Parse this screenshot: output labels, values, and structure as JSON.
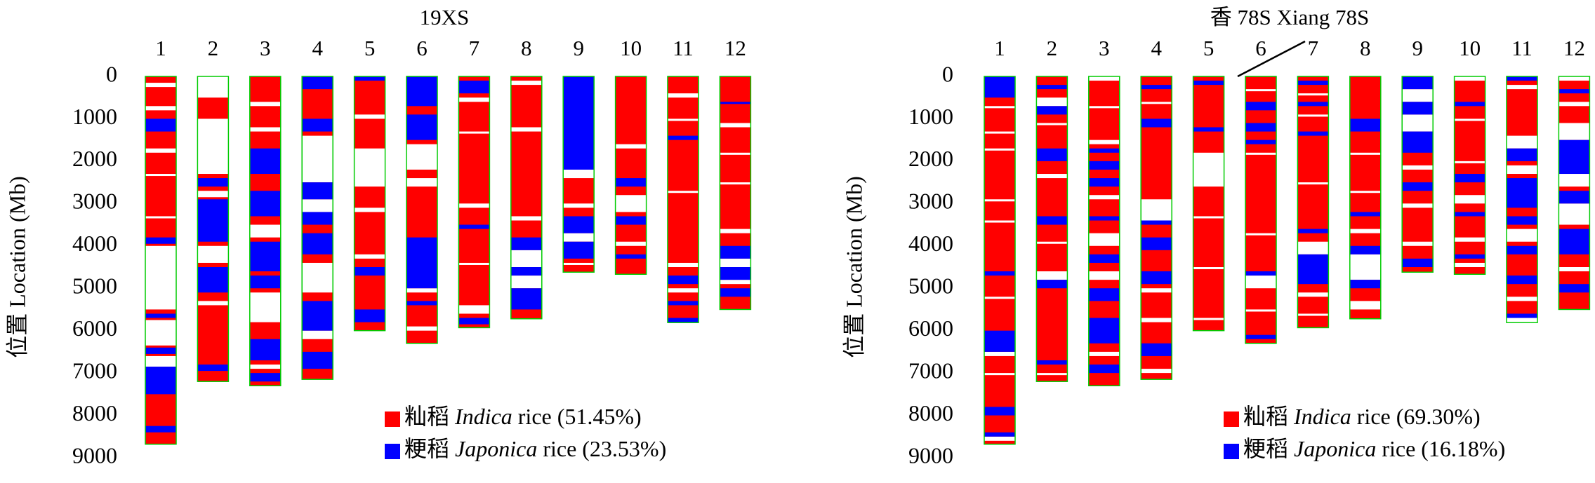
{
  "chart_data": [
    {
      "type": "chromosome_map",
      "title": "19XS",
      "y_label": "位置 Location (Mb)",
      "ylim": [
        0,
        9000
      ],
      "yticks": [
        0,
        1000,
        2000,
        3000,
        4000,
        5000,
        6000,
        7000,
        8000,
        9000
      ],
      "categories": [
        "1",
        "2",
        "3",
        "4",
        "5",
        "6",
        "7",
        "8",
        "9",
        "10",
        "11",
        "12"
      ],
      "lengths": [
        8680,
        7200,
        7300,
        7150,
        6000,
        6300,
        5930,
        5720,
        4620,
        4670,
        5810,
        5500
      ],
      "legend": [
        {
          "label_zh": "籼稻",
          "label_italic": "Indica",
          "label_rest": "rice (51.45%)",
          "color": "#ff0000"
        },
        {
          "label_zh": "粳稻",
          "label_italic": "Japonica",
          "label_rest": "rice (23.53%)",
          "color": "#0000ff"
        }
      ],
      "blue": [
        [
          [
            1000,
            1300
          ],
          [
            3800,
            3950
          ],
          [
            5600,
            5700
          ],
          [
            6400,
            6550
          ],
          [
            6850,
            7500
          ],
          [
            8250,
            8400
          ]
        ],
        [
          [
            2400,
            2600
          ],
          [
            2900,
            3900
          ],
          [
            4500,
            5100
          ],
          [
            6800,
            6950
          ]
        ],
        [
          [
            1700,
            2300
          ],
          [
            2700,
            3300
          ],
          [
            3900,
            4600
          ],
          [
            4700,
            5000
          ],
          [
            6200,
            6700
          ],
          [
            7000,
            7200
          ]
        ],
        [
          [
            0,
            300
          ],
          [
            1000,
            1300
          ],
          [
            2500,
            2900
          ],
          [
            3200,
            3500
          ],
          [
            3700,
            4200
          ],
          [
            5300,
            6000
          ],
          [
            6500,
            6900
          ]
        ],
        [
          [
            0,
            100
          ],
          [
            4500,
            4700
          ],
          [
            5500,
            5800
          ]
        ],
        [
          [
            0,
            700
          ],
          [
            900,
            1500
          ],
          [
            3800,
            5000
          ],
          [
            5300,
            5400
          ]
        ],
        [
          [
            100,
            400
          ],
          [
            3500,
            3600
          ],
          [
            5700,
            5850
          ]
        ],
        [
          [
            3800,
            4100
          ],
          [
            4500,
            4700
          ],
          [
            5000,
            5500
          ]
        ],
        [
          [
            0,
            2200
          ],
          [
            3300,
            3700
          ],
          [
            3900,
            4300
          ]
        ],
        [
          [
            2400,
            2600
          ],
          [
            3300,
            3500
          ],
          [
            4200,
            4300
          ]
        ],
        [
          [
            1400,
            1500
          ],
          [
            4700,
            4900
          ],
          [
            5300,
            5400
          ],
          [
            5700,
            5810
          ]
        ],
        [
          [
            600,
            650
          ],
          [
            4000,
            4300
          ],
          [
            4500,
            4800
          ],
          [
            5000,
            5200
          ]
        ]
      ],
      "white": [
        [
          [
            150,
            250
          ],
          [
            700,
            800
          ],
          [
            1700,
            1800
          ],
          [
            2300,
            2350
          ],
          [
            3300,
            3350
          ],
          [
            4000,
            5500
          ],
          [
            5750,
            6350
          ],
          [
            6600,
            6850
          ]
        ],
        [
          [
            0,
            500
          ],
          [
            1000,
            2300
          ],
          [
            2700,
            2850
          ],
          [
            4000,
            4400
          ],
          [
            5300,
            5400
          ]
        ],
        [
          [
            600,
            700
          ],
          [
            1200,
            1300
          ],
          [
            3500,
            3800
          ],
          [
            5100,
            5800
          ],
          [
            6800,
            6900
          ]
        ],
        [
          [
            1400,
            2500
          ],
          [
            2900,
            3200
          ],
          [
            4400,
            5100
          ],
          [
            6000,
            6200
          ]
        ],
        [
          [
            900,
            1000
          ],
          [
            1700,
            2600
          ],
          [
            3100,
            3200
          ],
          [
            4200,
            4300
          ]
        ],
        [
          [
            1600,
            2200
          ],
          [
            2400,
            2600
          ],
          [
            5000,
            5100
          ],
          [
            5900,
            6000
          ]
        ],
        [
          [
            500,
            600
          ],
          [
            1300,
            1350
          ],
          [
            3000,
            3100
          ],
          [
            4400,
            4450
          ],
          [
            5400,
            5600
          ]
        ],
        [
          [
            100,
            200
          ],
          [
            1200,
            1300
          ],
          [
            3300,
            3400
          ],
          [
            4100,
            4500
          ],
          [
            4700,
            5000
          ]
        ],
        [
          [
            2200,
            2400
          ],
          [
            3000,
            3100
          ],
          [
            3700,
            3900
          ],
          [
            4400,
            4450
          ]
        ],
        [
          [
            1600,
            1700
          ],
          [
            2800,
            3200
          ],
          [
            3900,
            4000
          ]
        ],
        [
          [
            400,
            500
          ],
          [
            1000,
            1050
          ],
          [
            2700,
            2750
          ],
          [
            4400,
            4500
          ],
          [
            5000,
            5100
          ]
        ],
        [
          [
            1100,
            1200
          ],
          [
            1800,
            1850
          ],
          [
            2500,
            2550
          ],
          [
            3600,
            3700
          ],
          [
            4300,
            4500
          ],
          [
            4800,
            4900
          ]
        ]
      ]
    },
    {
      "type": "chromosome_map",
      "title": "香 78S Xiang 78S",
      "y_label": "位置 Location (Mb)",
      "ylim": [
        0,
        9000
      ],
      "yticks": [
        0,
        1000,
        2000,
        3000,
        4000,
        5000,
        6000,
        7000,
        8000,
        9000
      ],
      "categories": [
        "1",
        "2",
        "3",
        "4",
        "5",
        "6",
        "7",
        "8",
        "9",
        "10",
        "11",
        "12"
      ],
      "lengths": [
        8680,
        7200,
        7300,
        7150,
        6000,
        6300,
        5930,
        5720,
        4620,
        4670,
        5810,
        5500
      ],
      "legend": [
        {
          "label_zh": "籼稻",
          "label_italic": "Indica",
          "label_rest": "rice (69.30%)",
          "color": "#ff0000"
        },
        {
          "label_zh": "粳稻",
          "label_italic": "Japonica",
          "label_rest": "rice (16.18%)",
          "color": "#0000ff"
        }
      ],
      "blue": [
        [
          [
            0,
            500
          ],
          [
            4600,
            4700
          ],
          [
            6000,
            6500
          ],
          [
            7800,
            8000
          ],
          [
            8400,
            8500
          ]
        ],
        [
          [
            200,
            300
          ],
          [
            700,
            900
          ],
          [
            1700,
            2000
          ],
          [
            3300,
            3500
          ],
          [
            4800,
            5000
          ],
          [
            6700,
            6800
          ]
        ],
        [
          [
            1700,
            1800
          ],
          [
            2000,
            2200
          ],
          [
            2400,
            2600
          ],
          [
            3300,
            3400
          ],
          [
            4200,
            4400
          ],
          [
            5000,
            5300
          ],
          [
            5700,
            6300
          ],
          [
            6800,
            7000
          ]
        ],
        [
          [
            200,
            300
          ],
          [
            1000,
            1200
          ],
          [
            3400,
            3500
          ],
          [
            3800,
            4100
          ],
          [
            4600,
            4900
          ],
          [
            6300,
            6600
          ]
        ],
        [
          [
            100,
            200
          ],
          [
            1200,
            1300
          ]
        ],
        [
          [
            600,
            800
          ],
          [
            1100,
            1300
          ],
          [
            1500,
            1600
          ],
          [
            4600,
            4700
          ],
          [
            6100,
            6200
          ]
        ],
        [
          [
            100,
            200
          ],
          [
            600,
            700
          ],
          [
            1300,
            1400
          ],
          [
            3600,
            3700
          ],
          [
            4200,
            4900
          ]
        ],
        [
          [
            1000,
            1300
          ],
          [
            3200,
            3300
          ],
          [
            4000,
            4200
          ],
          [
            4800,
            5000
          ]
        ],
        [
          [
            0,
            300
          ],
          [
            600,
            900
          ],
          [
            1300,
            1800
          ],
          [
            2500,
            2700
          ],
          [
            4300,
            4500
          ]
        ],
        [
          [
            600,
            700
          ],
          [
            2300,
            2500
          ],
          [
            3200,
            3300
          ],
          [
            4200,
            4300
          ]
        ],
        [
          [
            0,
            100
          ],
          [
            1700,
            2000
          ],
          [
            2400,
            3100
          ],
          [
            3300,
            3500
          ],
          [
            4000,
            4200
          ],
          [
            4700,
            4900
          ],
          [
            5600,
            5700
          ]
        ],
        [
          [
            300,
            400
          ],
          [
            1500,
            2300
          ],
          [
            2700,
            3000
          ],
          [
            3600,
            4200
          ],
          [
            4900,
            5100
          ]
        ]
      ],
      "white": [
        [
          [
            700,
            750
          ],
          [
            1300,
            1350
          ],
          [
            1700,
            1750
          ],
          [
            2900,
            2950
          ],
          [
            3400,
            3450
          ],
          [
            5200,
            5250
          ],
          [
            6500,
            6600
          ],
          [
            7000,
            7050
          ],
          [
            8500,
            8600
          ]
        ],
        [
          [
            500,
            700
          ],
          [
            1100,
            1150
          ],
          [
            2300,
            2400
          ],
          [
            3900,
            3950
          ],
          [
            4600,
            4800
          ],
          [
            7000,
            7050
          ]
        ],
        [
          [
            0,
            100
          ],
          [
            700,
            750
          ],
          [
            1500,
            1600
          ],
          [
            2800,
            2900
          ],
          [
            3700,
            4000
          ],
          [
            4600,
            4800
          ],
          [
            6500,
            6600
          ]
        ],
        [
          [
            600,
            650
          ],
          [
            2900,
            3400
          ],
          [
            5000,
            5100
          ],
          [
            5700,
            5800
          ],
          [
            6900,
            7000
          ]
        ],
        [
          [
            1800,
            2600
          ],
          [
            3300,
            3350
          ],
          [
            4500,
            4550
          ],
          [
            5700,
            5750
          ]
        ],
        [
          [
            300,
            350
          ],
          [
            1800,
            1850
          ],
          [
            3700,
            3750
          ],
          [
            4700,
            5000
          ],
          [
            5500,
            5550
          ]
        ],
        [
          [
            400,
            450
          ],
          [
            900,
            950
          ],
          [
            2500,
            2550
          ],
          [
            3900,
            4200
          ],
          [
            5100,
            5200
          ],
          [
            5600,
            5650
          ]
        ],
        [
          [
            1800,
            1850
          ],
          [
            2700,
            2750
          ],
          [
            3600,
            3700
          ],
          [
            4200,
            4800
          ],
          [
            5300,
            5500
          ]
        ],
        [
          [
            300,
            600
          ],
          [
            900,
            1300
          ],
          [
            2100,
            2200
          ],
          [
            3000,
            3100
          ],
          [
            3900,
            4000
          ]
        ],
        [
          [
            0,
            100
          ],
          [
            1000,
            1050
          ],
          [
            2000,
            2050
          ],
          [
            2800,
            3000
          ],
          [
            3800,
            3900
          ],
          [
            4400,
            4500
          ]
        ],
        [
          [
            200,
            300
          ],
          [
            1400,
            1700
          ],
          [
            2100,
            2300
          ],
          [
            3600,
            3900
          ],
          [
            5200,
            5300
          ],
          [
            5700,
            5810
          ]
        ],
        [
          [
            0,
            100
          ],
          [
            600,
            700
          ],
          [
            1100,
            1500
          ],
          [
            2300,
            2600
          ],
          [
            3000,
            3500
          ],
          [
            4500,
            4600
          ]
        ]
      ]
    }
  ]
}
